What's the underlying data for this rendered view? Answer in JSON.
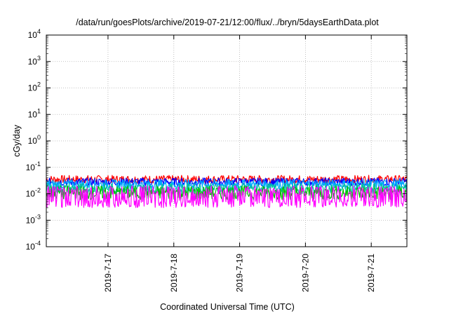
{
  "chart_data": {
    "type": "line",
    "title": "/data/run/goesPlots/archive/2019-07-21/12:00/flux/../bryn/5daysEarthData.plot",
    "xlabel": "Coordinated Universal Time (UTC)",
    "ylabel": "cGy/day",
    "x_range": [
      "2019-07-16T01:30",
      "2019-07-21T13:00"
    ],
    "xticks": [
      {
        "label": "2019-7-17",
        "x": "2019-07-17T00:00"
      },
      {
        "label": "2019-7-18",
        "x": "2019-07-18T00:00"
      },
      {
        "label": "2019-7-19",
        "x": "2019-07-19T00:00"
      },
      {
        "label": "2019-7-20",
        "x": "2019-07-20T00:00"
      },
      {
        "label": "2019-7-21",
        "x": "2019-07-21T00:00"
      }
    ],
    "y_scale": "log",
    "ylim": [
      0.0001,
      10000
    ],
    "yticks": [
      {
        "base": "10",
        "exp": "4",
        "value": 10000
      },
      {
        "base": "10",
        "exp": "3",
        "value": 1000
      },
      {
        "base": "10",
        "exp": "2",
        "value": 100
      },
      {
        "base": "10",
        "exp": "1",
        "value": 10
      },
      {
        "base": "10",
        "exp": "0",
        "value": 1
      },
      {
        "base": "10",
        "exp": "-1",
        "value": 0.1
      },
      {
        "base": "10",
        "exp": "-2",
        "value": 0.01
      },
      {
        "base": "10",
        "exp": "-3",
        "value": 0.001
      },
      {
        "base": "10",
        "exp": "-4",
        "value": 0.0001
      }
    ],
    "grid": true,
    "series": [
      {
        "color": "#ff0000",
        "low": 0.025,
        "high": 0.05
      },
      {
        "color": "#0000ff",
        "low": 0.02,
        "high": 0.04
      },
      {
        "color": "#00aaff",
        "low": 0.015,
        "high": 0.035
      },
      {
        "color": "#00c0a0",
        "low": 0.01,
        "high": 0.025
      },
      {
        "color": "#00c000",
        "low": 0.006,
        "high": 0.02
      },
      {
        "color": "#ff00ff",
        "low": 0.003,
        "high": 0.02
      }
    ]
  }
}
